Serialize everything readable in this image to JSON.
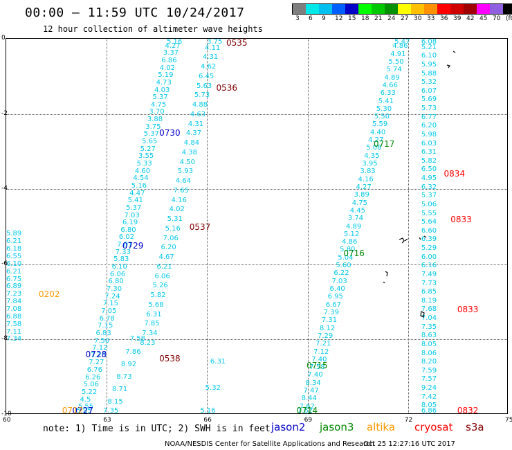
{
  "header": {
    "title": "00:00 – 11:59 UTC 10/24/2017",
    "subtitle": "12 hour collection of altimeter wave heights"
  },
  "colorbar": {
    "colors": [
      "#7f7f7f",
      "#00e8e8",
      "#00c0f0",
      "#0060ff",
      "#0000c8",
      "#00ff00",
      "#00c800",
      "#009000",
      "#ffff00",
      "#ffc000",
      "#ff9000",
      "#ff0000",
      "#d00000",
      "#a00000",
      "#ff00ff",
      "#9060e0",
      "#000000"
    ],
    "labels": [
      "3",
      "6",
      "9",
      "12",
      "15",
      "18",
      "21",
      "24",
      "27",
      "30",
      "33",
      "36",
      "39",
      "42",
      "45",
      "70",
      "(ft)"
    ]
  },
  "axes": {
    "x_ticks": [
      "60",
      "63",
      "66",
      "69",
      "72",
      "75"
    ],
    "y_ticks": [
      "0",
      "-2",
      "-4",
      "-6",
      "-8",
      "-10"
    ]
  },
  "satellites": {
    "jason2": {
      "name": "jason2",
      "color": "#0000c8"
    },
    "jason3": {
      "name": "jason3",
      "color": "#008800"
    },
    "altika": {
      "name": "altika",
      "color": "#ff9900"
    },
    "cryosat": {
      "name": "cryosat",
      "color": "#ff0000"
    },
    "s3a": {
      "name": "s3a",
      "color": "#800000"
    }
  },
  "tracks": [
    {
      "x1": 66.0,
      "y1": -10.0,
      "x2": 66.3,
      "y2": -8.6,
      "values": [
        "5.16",
        "5.32",
        "6.31"
      ]
    },
    {
      "x1": 62.3,
      "y1": -10.0,
      "x2": 65.0,
      "y2": 0.0,
      "values": [
        "5.95",
        "5.55",
        "4.5",
        "5.22",
        "5.06",
        "6.26",
        "6.76",
        "7.27",
        "7.20",
        "7.12",
        "7.50",
        "6.83",
        "7.15",
        "6.78",
        "7.05",
        "7.15",
        "7.24",
        "7.30",
        "6.80",
        "6.06",
        "6.10",
        "5.83",
        "7.33",
        "7.01",
        "6.02",
        "6.80",
        "6.19",
        "7.03",
        "5.37",
        "5.41",
        "4.47",
        "5.16",
        "4.54",
        "4.60",
        "5.33",
        "3.55",
        "5.27",
        "5.65",
        "5.37",
        "3.75",
        "3.88",
        "3.70",
        "4.75",
        "5.37",
        "4.03",
        "4.73",
        "5.19",
        "4.02",
        "6.86",
        "3.37",
        "4.27",
        "5.16"
      ]
    },
    {
      "x1": 60.2,
      "y1": -8.0,
      "x2": 60.2,
      "y2": -5.2,
      "values": [
        "7.34",
        "7.11",
        "7.58",
        "6.88",
        "7.08",
        "7.84",
        "7.23",
        "6.89",
        "6.75",
        "6.21",
        "6.10",
        "6.55",
        "6.18",
        "6.21",
        "5.89"
      ]
    },
    {
      "x1": 63.1,
      "y1": -10.0,
      "x2": 63.9,
      "y2": -8.0,
      "values": [
        "7.35",
        "8.15",
        "8.71",
        "8.73",
        "8.92",
        "7.86",
        "7.58"
      ]
    },
    {
      "x1": 64.2,
      "y1": -8.1,
      "x2": 66.2,
      "y2": 0.0,
      "values": [
        "8.23",
        "7.34",
        "7.85",
        "6.31",
        "5.68",
        "5.82",
        "5.26",
        "6.06",
        "6.21",
        "4.67",
        "6.20",
        "7.06",
        "5.16",
        "5.31",
        "4.02",
        "4.16",
        "7.65",
        "4.64",
        "5.93",
        "4.50",
        "4.38",
        "4.84",
        "4.37",
        "4.31",
        "4.63",
        "4.88",
        "5.73",
        "5.63",
        "6.45",
        "4.62",
        "4.31",
        "4.11",
        "3.75"
      ]
    },
    {
      "x1": 68.9,
      "y1": -10.0,
      "x2": 71.8,
      "y2": 0.0,
      "values": [
        "7.62",
        "7.62",
        "8.44",
        "7.47",
        "8.34",
        "7.40",
        "7.58",
        "7.40",
        "7.12",
        "7.21",
        "7.29",
        "8.12",
        "7.31",
        "7.39",
        "6.67",
        "6.95",
        "6.40",
        "7.03",
        "6.22",
        "5.60",
        "5.04",
        "5.80",
        "4.86",
        "5.12",
        "4.89",
        "3.74",
        "4.45",
        "4.75",
        "3.89",
        "4.27",
        "4.16",
        "3.83",
        "3.95",
        "4.35",
        "5.08",
        "4.27",
        "4.40",
        "5.59",
        "5.50",
        "5.30",
        "5.41",
        "6.33",
        "4.66",
        "4.89",
        "5.74",
        "5.50",
        "4.91",
        "4.86",
        "5.47"
      ]
    },
    {
      "x1": 72.6,
      "y1": -10.0,
      "x2": 72.6,
      "y2": 0.0,
      "values": [
        "6.86",
        "8.05",
        "7.42",
        "9.24",
        "7.57",
        "7.59",
        "8.20",
        "8.06",
        "8.05",
        "8.63",
        "7.35",
        "7.04",
        "7.68",
        "8.19",
        "6.85",
        "7.73",
        "7.49",
        "6.16",
        "6.00",
        "5.29",
        "6.39",
        "6.60",
        "5.64",
        "5.55",
        "5.06",
        "5.37",
        "6.32",
        "4.95",
        "6.50",
        "5.82",
        "6.31",
        "6.03",
        "5.98",
        "6.20",
        "6.77",
        "5.73",
        "5.69",
        "6.07",
        "5.32",
        "5.88",
        "5.95",
        "6.10",
        "5.21",
        "6.08"
      ]
    }
  ],
  "time_labels": [
    {
      "text": "0535",
      "sat": "s3a",
      "x": 66.9,
      "y": 0.0
    },
    {
      "text": "0536",
      "sat": "s3a",
      "x": 66.6,
      "y": -1.3
    },
    {
      "text": "0730",
      "sat": "jason2",
      "x": 64.9,
      "y": -2.5
    },
    {
      "text": "0537",
      "sat": "s3a",
      "x": 65.8,
      "y": -5.0
    },
    {
      "text": "0729",
      "sat": "jason2",
      "x": 63.8,
      "y": -5.5
    },
    {
      "text": "0202",
      "sat": "altika",
      "x": 61.3,
      "y": -6.8
    },
    {
      "text": "0728",
      "sat": "jason2",
      "x": 62.7,
      "y": -8.4
    },
    {
      "text": "0538",
      "sat": "s3a",
      "x": 64.9,
      "y": -8.5
    },
    {
      "text": "0727",
      "sat": "jason2",
      "x": 62.3,
      "y": -10.0
    },
    {
      "text": "0717",
      "sat": "jason3",
      "x": 71.3,
      "y": -2.8
    },
    {
      "text": "0716",
      "sat": "jason3",
      "x": 70.4,
      "y": -5.7
    },
    {
      "text": "0715",
      "sat": "jason3",
      "x": 69.3,
      "y": -8.7
    },
    {
      "text": "0714",
      "sat": "jason3",
      "x": 69.0,
      "y": -10.0
    },
    {
      "text": "0834",
      "sat": "cryosat",
      "x": 73.4,
      "y": -3.6
    },
    {
      "text": "0833",
      "sat": "cryosat",
      "x": 73.6,
      "y": -4.8
    },
    {
      "text": "0833",
      "sat": "cryosat",
      "x": 73.8,
      "y": -7.2
    },
    {
      "text": "0832",
      "sat": "cryosat",
      "x": 73.8,
      "y": -10.0
    },
    {
      "text": "0712",
      "sat": "altika",
      "x": 62.0,
      "y": -10.0
    }
  ],
  "footer": {
    "note": "note:  1) Time is in UTC;  2) SWH is in feet",
    "credit": "NOAA/NESDIS Center for Satellite Applications and Research",
    "timestamp": "Oct 25 12:27:16 UTC 2017"
  }
}
